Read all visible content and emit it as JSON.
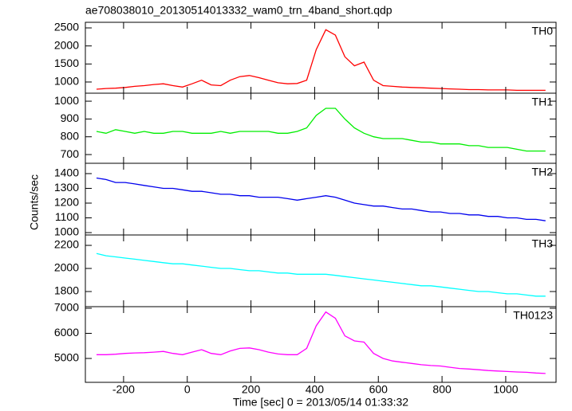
{
  "title": "ae708038010_20130514013332_wam0_trn_4band_short.qdp",
  "ylabel": "Counts/sec",
  "xlabel": "Time [sec] 0 = 2013/05/14 01:33:32",
  "chart_data": [
    {
      "type": "line",
      "xlim": [
        -320,
        1158
      ],
      "xticks": [
        -200,
        0,
        200,
        400,
        600,
        800,
        1000
      ],
      "ylim": [
        690,
        2655
      ],
      "yticks": [
        1000,
        1500,
        2000,
        2500
      ],
      "x": [
        -285,
        -255,
        -225,
        -195,
        -165,
        -135,
        -105,
        -75,
        -45,
        -15,
        15,
        45,
        75,
        105,
        135,
        165,
        195,
        225,
        255,
        285,
        315,
        345,
        375,
        405,
        435,
        465,
        495,
        525,
        555,
        585,
        615,
        645,
        675,
        705,
        735,
        765,
        795,
        825,
        855,
        885,
        915,
        945,
        975,
        1005,
        1035,
        1065,
        1095,
        1125
      ],
      "series": [
        {
          "name": "TH0",
          "color": "#ff0000",
          "values": [
            800,
            820,
            830,
            850,
            880,
            900,
            930,
            950,
            900,
            860,
            950,
            1050,
            920,
            900,
            1050,
            1150,
            1180,
            1120,
            1050,
            980,
            950,
            960,
            1050,
            1900,
            2450,
            2300,
            1700,
            1450,
            1550,
            1050,
            900,
            880,
            860,
            850,
            840,
            830,
            820,
            810,
            800,
            790,
            790,
            780,
            780,
            780,
            770,
            770,
            770,
            770
          ]
        }
      ]
    },
    {
      "type": "line",
      "xlim": [
        -320,
        1158
      ],
      "xticks": [
        -200,
        0,
        200,
        400,
        600,
        800,
        1000
      ],
      "ylim": [
        651,
        1045
      ],
      "yticks": [
        700,
        800,
        900,
        1000
      ],
      "x": [
        -285,
        -255,
        -225,
        -195,
        -165,
        -135,
        -105,
        -75,
        -45,
        -15,
        15,
        45,
        75,
        105,
        135,
        165,
        195,
        225,
        255,
        285,
        315,
        345,
        375,
        405,
        435,
        465,
        495,
        525,
        555,
        585,
        615,
        645,
        675,
        705,
        735,
        765,
        795,
        825,
        855,
        885,
        915,
        945,
        975,
        1005,
        1035,
        1065,
        1095,
        1125
      ],
      "series": [
        {
          "name": "TH1",
          "color": "#00ee00",
          "values": [
            830,
            820,
            840,
            830,
            820,
            830,
            820,
            820,
            830,
            830,
            820,
            820,
            820,
            830,
            820,
            830,
            830,
            830,
            830,
            820,
            820,
            830,
            850,
            920,
            960,
            960,
            900,
            850,
            820,
            800,
            790,
            790,
            790,
            780,
            770,
            770,
            760,
            760,
            760,
            750,
            750,
            740,
            740,
            740,
            730,
            720,
            720,
            720
          ]
        }
      ]
    },
    {
      "type": "line",
      "xlim": [
        -320,
        1158
      ],
      "xticks": [
        -200,
        0,
        200,
        400,
        600,
        800,
        1000
      ],
      "ylim": [
        984,
        1470
      ],
      "yticks": [
        1000,
        1100,
        1200,
        1300,
        1400
      ],
      "x": [
        -285,
        -255,
        -225,
        -195,
        -165,
        -135,
        -105,
        -75,
        -45,
        -15,
        15,
        45,
        75,
        105,
        135,
        165,
        195,
        225,
        255,
        285,
        315,
        345,
        375,
        405,
        435,
        465,
        495,
        525,
        555,
        585,
        615,
        645,
        675,
        705,
        735,
        765,
        795,
        825,
        855,
        885,
        915,
        945,
        975,
        1005,
        1035,
        1065,
        1095,
        1125
      ],
      "series": [
        {
          "name": "TH2",
          "color": "#0000ee",
          "values": [
            1370,
            1360,
            1340,
            1340,
            1330,
            1320,
            1310,
            1300,
            1300,
            1290,
            1280,
            1280,
            1270,
            1260,
            1260,
            1250,
            1250,
            1240,
            1240,
            1240,
            1230,
            1220,
            1230,
            1240,
            1250,
            1240,
            1220,
            1200,
            1190,
            1180,
            1180,
            1170,
            1160,
            1160,
            1150,
            1140,
            1140,
            1130,
            1130,
            1120,
            1120,
            1110,
            1110,
            1100,
            1100,
            1090,
            1090,
            1080
          ]
        }
      ]
    },
    {
      "type": "line",
      "xlim": [
        -320,
        1158
      ],
      "xticks": [
        -200,
        0,
        200,
        400,
        600,
        800,
        1000
      ],
      "ylim": [
        1669,
        2290
      ],
      "yticks": [
        1800,
        2000,
        2200
      ],
      "x": [
        -285,
        -255,
        -225,
        -195,
        -165,
        -135,
        -105,
        -75,
        -45,
        -15,
        15,
        45,
        75,
        105,
        135,
        165,
        195,
        225,
        255,
        285,
        315,
        345,
        375,
        405,
        435,
        465,
        495,
        525,
        555,
        585,
        615,
        645,
        675,
        705,
        735,
        765,
        795,
        825,
        855,
        885,
        915,
        945,
        975,
        1005,
        1035,
        1065,
        1095,
        1125
      ],
      "series": [
        {
          "name": "TH3",
          "color": "#00ffff",
          "values": [
            2130,
            2110,
            2100,
            2090,
            2080,
            2070,
            2060,
            2050,
            2040,
            2040,
            2030,
            2020,
            2010,
            2000,
            2000,
            1990,
            1980,
            1980,
            1970,
            1960,
            1960,
            1950,
            1950,
            1950,
            1950,
            1940,
            1930,
            1920,
            1910,
            1900,
            1890,
            1880,
            1870,
            1860,
            1850,
            1850,
            1840,
            1830,
            1820,
            1810,
            1800,
            1800,
            1790,
            1780,
            1780,
            1770,
            1760,
            1760
          ]
        }
      ]
    },
    {
      "type": "line",
      "xlim": [
        -320,
        1158
      ],
      "xticks": [
        -200,
        0,
        200,
        400,
        600,
        800,
        1000
      ],
      "ylim": [
        4049,
        7063
      ],
      "yticks": [
        5000,
        6000,
        7000
      ],
      "x": [
        -285,
        -255,
        -225,
        -195,
        -165,
        -135,
        -105,
        -75,
        -45,
        -15,
        15,
        45,
        75,
        105,
        135,
        165,
        195,
        225,
        255,
        285,
        315,
        345,
        375,
        405,
        435,
        465,
        495,
        525,
        555,
        585,
        615,
        645,
        675,
        705,
        735,
        765,
        795,
        825,
        855,
        885,
        915,
        945,
        975,
        1005,
        1035,
        1065,
        1095,
        1125
      ],
      "series": [
        {
          "name": "TH0123",
          "color": "#ff00ff",
          "values": [
            5150,
            5150,
            5170,
            5200,
            5220,
            5230,
            5250,
            5280,
            5200,
            5150,
            5250,
            5350,
            5200,
            5150,
            5300,
            5400,
            5420,
            5350,
            5250,
            5180,
            5150,
            5150,
            5400,
            6300,
            6850,
            6600,
            5900,
            5700,
            5650,
            5200,
            5000,
            4900,
            4850,
            4800,
            4750,
            4720,
            4700,
            4650,
            4600,
            4580,
            4550,
            4520,
            4500,
            4480,
            4460,
            4450,
            4420,
            4400
          ]
        }
      ]
    }
  ]
}
